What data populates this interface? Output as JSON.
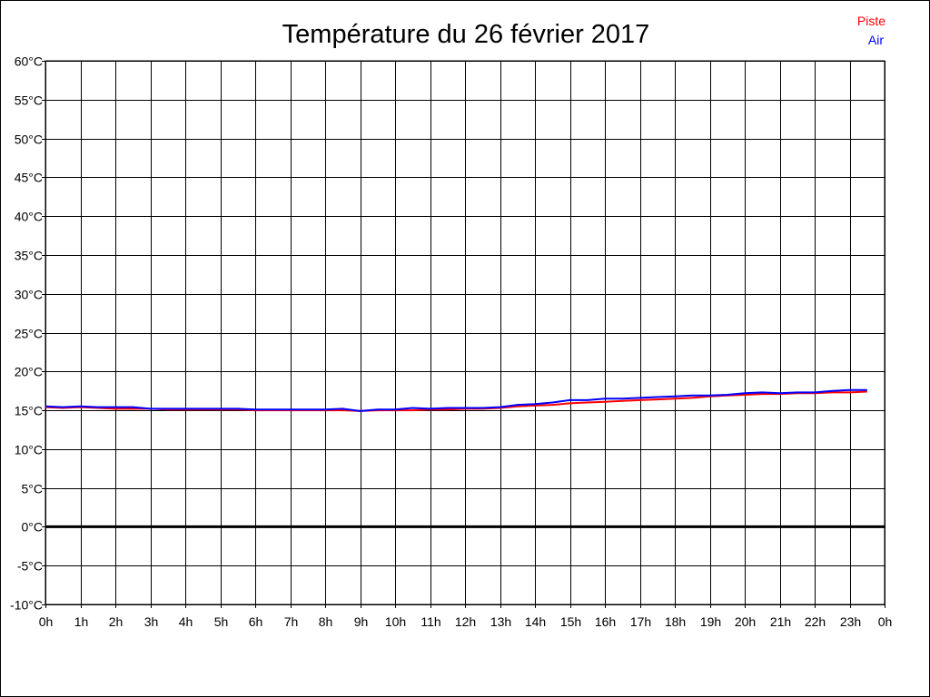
{
  "chart_data": {
    "type": "line",
    "title": "Température du 26 février 2017",
    "x_tick_labels": [
      "0h",
      "1h",
      "2h",
      "3h",
      "4h",
      "5h",
      "6h",
      "7h",
      "8h",
      "9h",
      "10h",
      "11h",
      "12h",
      "13h",
      "14h",
      "15h",
      "16h",
      "17h",
      "18h",
      "19h",
      "20h",
      "21h",
      "22h",
      "23h",
      "0h"
    ],
    "y_tick_labels": [
      "60°C",
      "55°C",
      "50°C",
      "45°C",
      "40°C",
      "35°C",
      "30°C",
      "25°C",
      "20°C",
      "15°C",
      "10°C",
      "5°C",
      "0°C",
      "-5°C",
      "-10°C"
    ],
    "xlim": [
      0,
      24
    ],
    "ylim": [
      -10,
      60
    ],
    "grid": true,
    "zero_line": true,
    "legend_position": "top-right",
    "series": [
      {
        "name": "Piste",
        "color": "#ff0000",
        "x": [
          0,
          0.5,
          1,
          1.5,
          2,
          2.5,
          3,
          3.5,
          4,
          4.5,
          5,
          5.5,
          6,
          6.5,
          7,
          7.5,
          8,
          8.5,
          9,
          9.5,
          10,
          10.5,
          11,
          11.5,
          12,
          12.5,
          13,
          13.5,
          14,
          14.5,
          15,
          15.5,
          16,
          16.5,
          17,
          17.5,
          18,
          18.5,
          19,
          19.5,
          20,
          20.5,
          21,
          21.5,
          22,
          22.5,
          23,
          23.5
        ],
        "values": [
          15.4,
          15.3,
          15.4,
          15.3,
          15.2,
          15.2,
          15.2,
          15.1,
          15.1,
          15.1,
          15.1,
          15.1,
          15.0,
          15.0,
          15.0,
          15.0,
          15.0,
          15.0,
          14.9,
          15.0,
          15.0,
          15.0,
          15.1,
          15.1,
          15.2,
          15.2,
          15.3,
          15.5,
          15.6,
          15.7,
          15.9,
          16.0,
          16.1,
          16.2,
          16.3,
          16.4,
          16.5,
          16.6,
          16.8,
          16.9,
          17.0,
          17.1,
          17.1,
          17.2,
          17.2,
          17.3,
          17.3,
          17.4
        ]
      },
      {
        "name": "Air",
        "color": "#0000ff",
        "x": [
          0,
          0.5,
          1,
          1.5,
          2,
          2.5,
          3,
          3.5,
          4,
          4.5,
          5,
          5.5,
          6,
          6.5,
          7,
          7.5,
          8,
          8.5,
          9,
          9.5,
          10,
          10.5,
          11,
          11.5,
          12,
          12.5,
          13,
          13.5,
          14,
          14.5,
          15,
          15.5,
          16,
          16.5,
          17,
          17.5,
          18,
          18.5,
          19,
          19.5,
          20,
          20.5,
          21,
          21.5,
          22,
          22.5,
          23,
          23.5
        ],
        "values": [
          15.5,
          15.4,
          15.5,
          15.4,
          15.4,
          15.4,
          15.2,
          15.2,
          15.2,
          15.2,
          15.2,
          15.2,
          15.1,
          15.1,
          15.1,
          15.1,
          15.1,
          15.2,
          14.9,
          15.1,
          15.1,
          15.3,
          15.2,
          15.3,
          15.3,
          15.3,
          15.4,
          15.7,
          15.8,
          16.0,
          16.3,
          16.3,
          16.5,
          16.5,
          16.6,
          16.7,
          16.8,
          16.9,
          16.9,
          17.0,
          17.2,
          17.3,
          17.2,
          17.3,
          17.3,
          17.5,
          17.6,
          17.6
        ]
      }
    ]
  }
}
